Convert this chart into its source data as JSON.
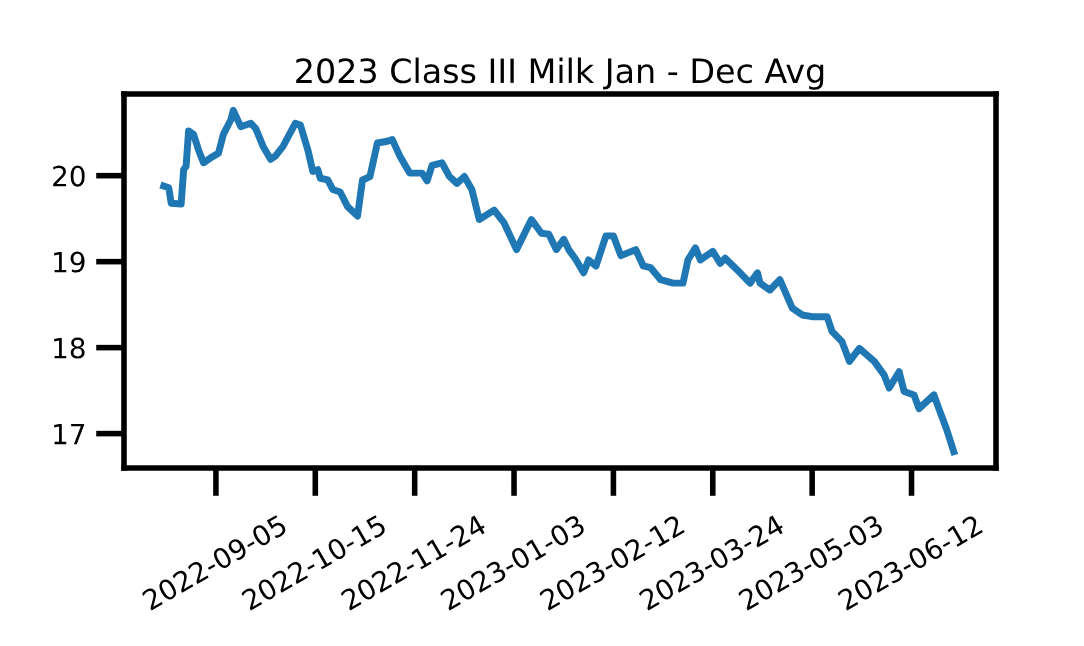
{
  "chart_data": {
    "type": "line",
    "title": "2023 Class III Milk Jan - Dec Avg",
    "x": [
      "2022-08-15",
      "2022-08-17",
      "2022-08-18",
      "2022-08-22",
      "2022-08-23",
      "2022-08-24",
      "2022-08-25",
      "2022-08-27",
      "2022-08-29",
      "2022-08-31",
      "2022-09-03",
      "2022-09-06",
      "2022-09-08",
      "2022-09-11",
      "2022-09-12",
      "2022-09-15",
      "2022-09-19",
      "2022-09-21",
      "2022-09-24",
      "2022-09-27",
      "2022-09-29",
      "2022-10-02",
      "2022-10-07",
      "2022-10-09",
      "2022-10-12",
      "2022-10-14",
      "2022-10-16",
      "2022-10-17",
      "2022-10-20",
      "2022-10-22",
      "2022-10-25",
      "2022-10-28",
      "2022-11-01",
      "2022-11-03",
      "2022-11-06",
      "2022-11-09",
      "2022-11-13",
      "2022-11-15",
      "2022-11-18",
      "2022-11-22",
      "2022-11-27",
      "2022-11-29",
      "2022-12-01",
      "2022-12-05",
      "2022-12-08",
      "2022-12-11",
      "2022-12-14",
      "2022-12-17",
      "2022-12-20",
      "2022-12-26",
      "2022-12-30",
      "2023-01-04",
      "2023-01-10",
      "2023-01-14",
      "2023-01-17",
      "2023-01-20",
      "2023-01-23",
      "2023-01-25",
      "2023-01-28",
      "2023-01-31",
      "2023-02-02",
      "2023-02-05",
      "2023-02-09",
      "2023-02-12",
      "2023-02-15",
      "2023-02-21",
      "2023-02-24",
      "2023-02-27",
      "2023-03-03",
      "2023-03-08",
      "2023-03-12",
      "2023-03-14",
      "2023-03-17",
      "2023-03-19",
      "2023-03-24",
      "2023-03-27",
      "2023-03-29",
      "2023-04-04",
      "2023-04-08",
      "2023-04-11",
      "2023-04-12",
      "2023-04-16",
      "2023-04-20",
      "2023-04-25",
      "2023-04-29",
      "2023-05-03",
      "2023-05-09",
      "2023-05-11",
      "2023-05-15",
      "2023-05-18",
      "2023-05-22",
      "2023-05-28",
      "2023-06-01",
      "2023-06-03",
      "2023-06-07",
      "2023-06-09",
      "2023-06-13",
      "2023-06-15",
      "2023-06-21",
      "2023-06-23",
      "2023-06-26",
      "2023-06-29"
    ],
    "series": [
      {
        "color": "#1f77b4",
        "values": [
          19.88,
          19.86,
          19.68,
          19.67,
          20.07,
          20.11,
          20.52,
          20.48,
          20.3,
          20.15,
          20.21,
          20.26,
          20.48,
          20.65,
          20.76,
          20.57,
          20.61,
          20.55,
          20.34,
          20.19,
          20.23,
          20.34,
          20.61,
          20.59,
          20.3,
          20.05,
          20.07,
          19.97,
          19.95,
          19.84,
          19.81,
          19.64,
          19.53,
          19.95,
          19.99,
          20.38,
          20.4,
          20.42,
          20.23,
          20.03,
          20.03,
          19.94,
          20.12,
          20.15,
          19.99,
          19.91,
          19.99,
          19.84,
          19.49,
          19.6,
          19.45,
          19.14,
          19.49,
          19.33,
          19.32,
          19.14,
          19.26,
          19.14,
          19.02,
          18.87,
          19.02,
          18.95,
          19.3,
          19.3,
          19.07,
          19.14,
          18.95,
          18.93,
          18.79,
          18.75,
          18.75,
          19.02,
          19.16,
          19.02,
          19.12,
          18.98,
          19.04,
          18.87,
          18.75,
          18.87,
          18.75,
          18.67,
          18.79,
          18.46,
          18.38,
          18.36,
          18.36,
          18.19,
          18.07,
          17.84,
          17.99,
          17.84,
          17.68,
          17.53,
          17.72,
          17.49,
          17.45,
          17.29,
          17.45,
          17.29,
          17.06,
          16.79
        ]
      }
    ],
    "xlim": [
      "2022-07-30",
      "2023-07-16"
    ],
    "xticks": [
      "2022-09-05",
      "2022-10-15",
      "2022-11-24",
      "2023-01-03",
      "2023-02-12",
      "2023-03-24",
      "2023-05-03",
      "2023-06-12"
    ],
    "ylim": [
      16.6,
      20.95
    ],
    "yticks": [
      17,
      18,
      19,
      20
    ],
    "grid": false,
    "marker": "none",
    "line_style": "solid"
  }
}
